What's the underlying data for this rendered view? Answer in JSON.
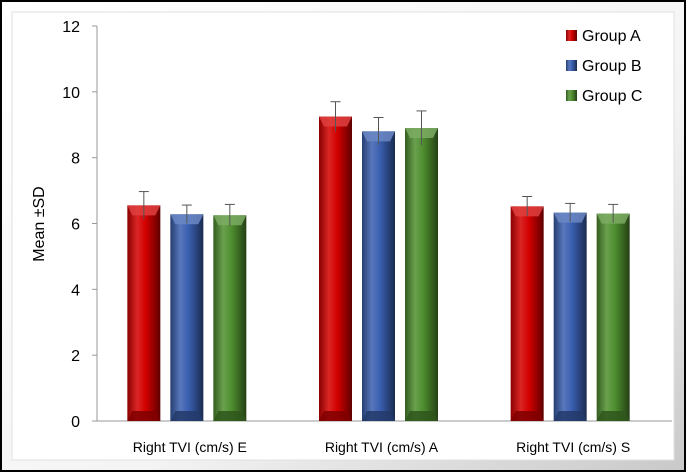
{
  "chart_data": {
    "type": "bar",
    "title": "",
    "xlabel": "",
    "ylabel": "Mean ±SD",
    "ylim": [
      0,
      12
    ],
    "yticks": [
      0,
      2,
      4,
      6,
      8,
      10,
      12
    ],
    "grid": false,
    "legend_position": "top-right",
    "categories": [
      "Right TVI (cm/s) E",
      "Right TVI (cm/s) A",
      "Right TVI (cm/s) S"
    ],
    "series": [
      {
        "name": "Group A",
        "color": "#d40000",
        "values": [
          6.55,
          9.25,
          6.52
        ],
        "sd": [
          0.42,
          0.45,
          0.3
        ]
      },
      {
        "name": "Group B",
        "color": "#3a5fb0",
        "values": [
          6.28,
          8.8,
          6.33
        ],
        "sd": [
          0.28,
          0.42,
          0.28
        ]
      },
      {
        "name": "Group C",
        "color": "#4f8f2f",
        "values": [
          6.25,
          8.9,
          6.3
        ],
        "sd": [
          0.33,
          0.52,
          0.28
        ]
      }
    ]
  }
}
